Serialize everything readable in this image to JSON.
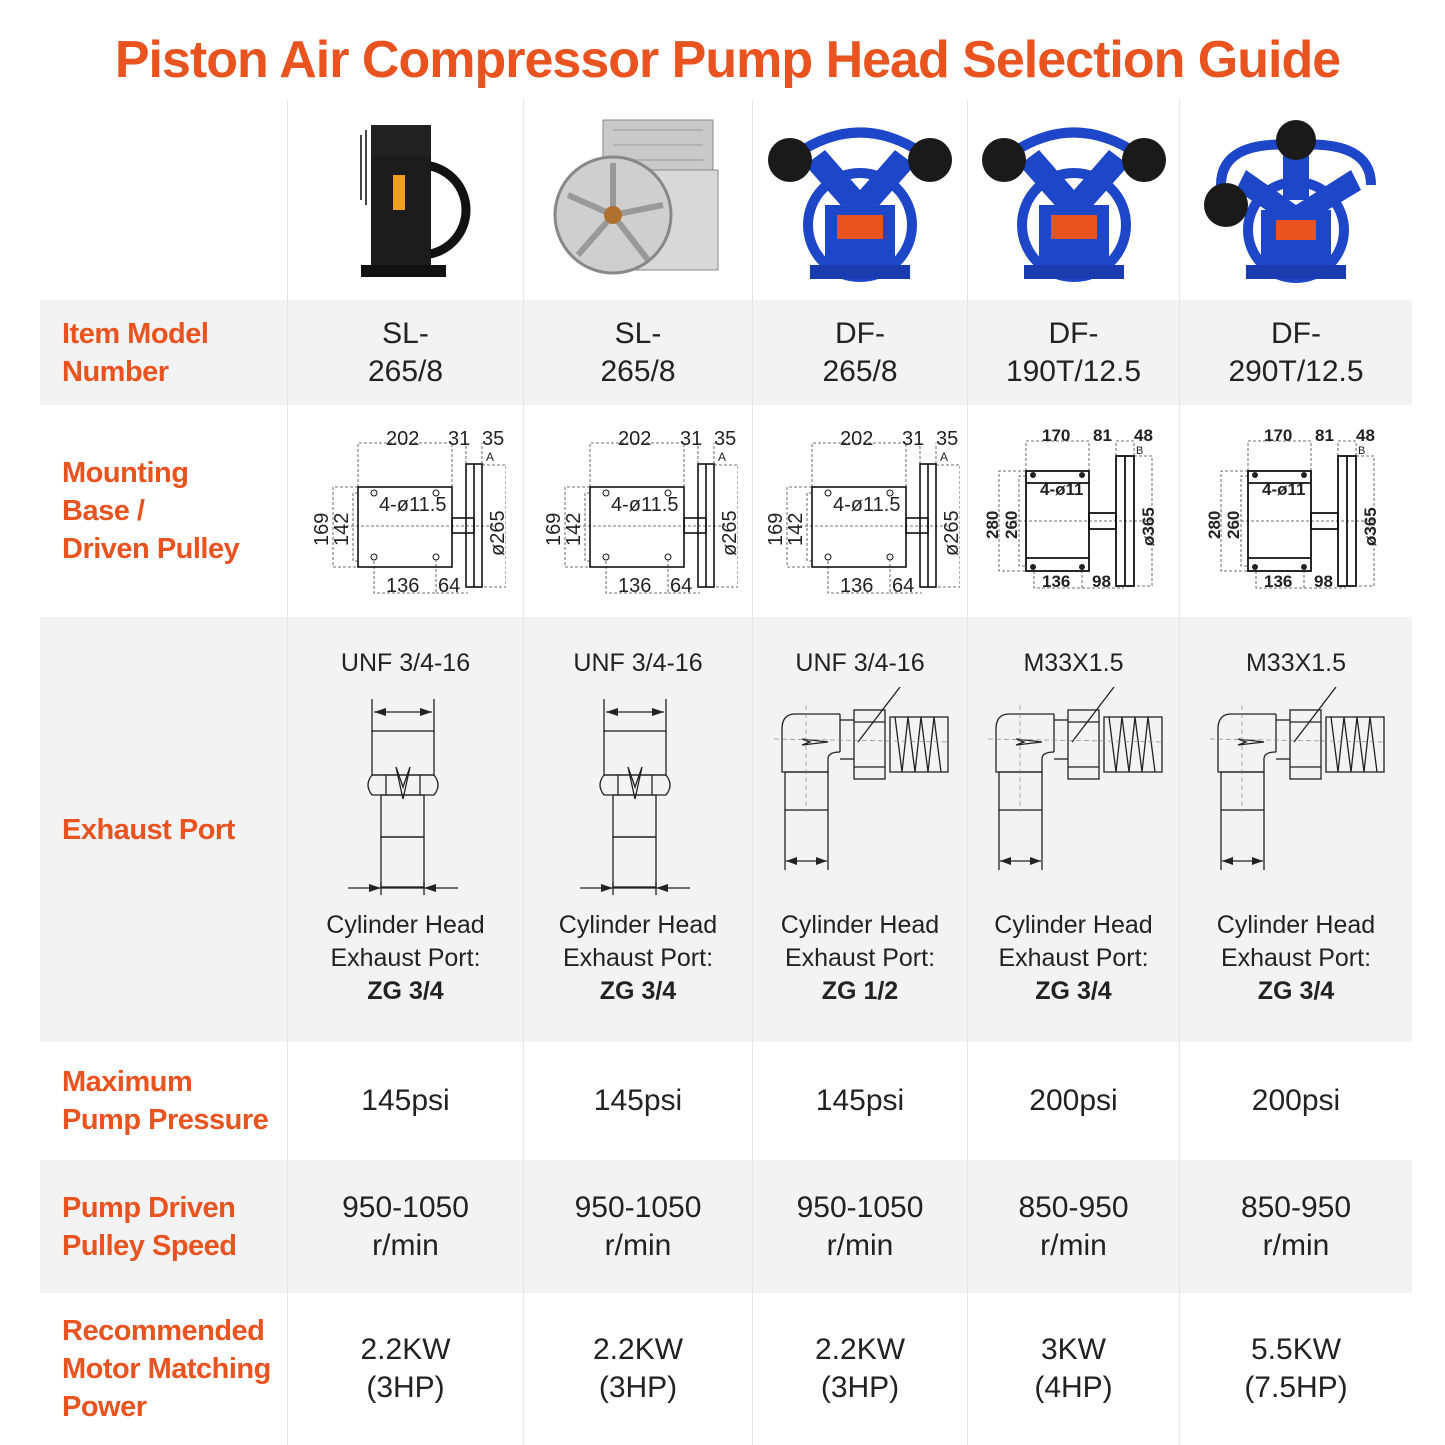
{
  "title": "Piston Air Compressor Pump Head Selection Guide",
  "colors": {
    "accent": "#E8531F",
    "row_gray": "#F3F3F3",
    "pump_blue": "#1E46C8"
  },
  "labels": {
    "model": [
      "Item Model",
      "Number"
    ],
    "mount": [
      "Mounting",
      "Base /",
      "Driven Pulley"
    ],
    "exhaust": [
      "Exhaust Port"
    ],
    "pressure": [
      "Maximum",
      "Pump Pressure"
    ],
    "speed": [
      "Pump Driven",
      "Pulley Speed"
    ],
    "power": [
      "Recommended",
      "Motor Matching",
      "Power"
    ]
  },
  "columns": [
    {
      "image": "black-pump-head",
      "model": [
        "SL-",
        "265/8"
      ],
      "mount": {
        "type": "A",
        "d1": "202",
        "d2": "31",
        "d3": "35",
        "h1": "169",
        "h2": "142",
        "hole": "4-ø11.5",
        "dia": "ø265",
        "b1": "136",
        "b2": "64",
        "mark": "A"
      },
      "exhaust": {
        "thread": "UNF 3/4-16",
        "drawing": "straight-fitting",
        "l1": "Cylinder Head",
        "l2": "Exhaust Port:",
        "port": "ZG 3/4"
      },
      "pressure": "145psi",
      "speed": [
        "950-1050",
        "r/min"
      ],
      "power": [
        "2.2KW",
        "(3HP)"
      ]
    },
    {
      "image": "silver-pump-head",
      "model": [
        "SL-",
        "265/8"
      ],
      "mount": {
        "type": "A",
        "d1": "202",
        "d2": "31",
        "d3": "35",
        "h1": "169",
        "h2": "142",
        "hole": "4-ø11.5",
        "dia": "ø265",
        "b1": "136",
        "b2": "64",
        "mark": "A"
      },
      "exhaust": {
        "thread": "UNF 3/4-16",
        "drawing": "straight-fitting",
        "l1": "Cylinder Head",
        "l2": "Exhaust Port:",
        "port": "ZG 3/4"
      },
      "pressure": "145psi",
      "speed": [
        "950-1050",
        "r/min"
      ],
      "power": [
        "2.2KW",
        "(3HP)"
      ]
    },
    {
      "image": "blue-v-twin-pump-head",
      "model": [
        "DF-",
        "265/8"
      ],
      "mount": {
        "type": "A",
        "d1": "202",
        "d2": "31",
        "d3": "35",
        "h1": "169",
        "h2": "142",
        "hole": "4-ø11.5",
        "dia": "ø265",
        "b1": "136",
        "b2": "64",
        "mark": "A"
      },
      "exhaust": {
        "thread": "UNF 3/4-16",
        "drawing": "elbow-fitting",
        "l1": "Cylinder Head",
        "l2": "Exhaust Port:",
        "port": "ZG 1/2"
      },
      "pressure": "145psi",
      "speed": [
        "950-1050",
        "r/min"
      ],
      "power": [
        "2.2KW",
        "(3HP)"
      ]
    },
    {
      "image": "blue-v-twin-pump-head",
      "model": [
        "DF-",
        "190T/12.5"
      ],
      "mount": {
        "type": "B",
        "d1": "170",
        "d2": "81",
        "d3": "48",
        "h1": "280",
        "h2": "260",
        "hole": "4-ø11",
        "dia": "ø365",
        "b1": "136",
        "b2": "98",
        "mark": "B"
      },
      "exhaust": {
        "thread": "M33X1.5",
        "drawing": "elbow-fitting",
        "l1": "Cylinder Head",
        "l2": "Exhaust Port:",
        "port": "ZG 3/4"
      },
      "pressure": "200psi",
      "speed": [
        "850-950",
        "r/min"
      ],
      "power": [
        "3KW",
        "(4HP)"
      ]
    },
    {
      "image": "blue-w-triple-pump-head",
      "model": [
        "DF-",
        "290T/12.5"
      ],
      "mount": {
        "type": "B",
        "d1": "170",
        "d2": "81",
        "d3": "48",
        "h1": "280",
        "h2": "260",
        "hole": "4-ø11",
        "dia": "ø365",
        "b1": "136",
        "b2": "98",
        "mark": "B"
      },
      "exhaust": {
        "thread": "M33X1.5",
        "drawing": "elbow-fitting",
        "l1": "Cylinder Head",
        "l2": "Exhaust Port:",
        "port": "ZG 3/4"
      },
      "pressure": "200psi",
      "speed": [
        "850-950",
        "r/min"
      ],
      "power": [
        "5.5KW",
        "(7.5HP)"
      ]
    }
  ]
}
